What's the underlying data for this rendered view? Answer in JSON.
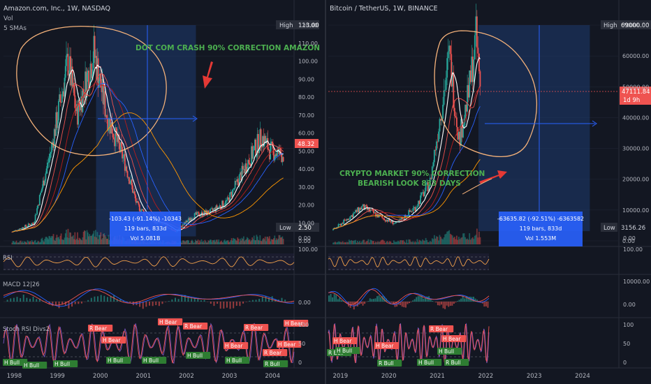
{
  "colors": {
    "background": "#131722",
    "grid": "#1f2433",
    "axis_text": "#b2b5be",
    "up": "#26a69a",
    "down": "#ef5350",
    "range_box": "#1e3a70",
    "blue": "#2962ff",
    "annot_green": "#4caf50",
    "arrow_red": "#e53935",
    "hand_circle": "#f5b27a"
  },
  "left_panel": {
    "symbol": "Amazon.com, Inc., 1W, NASDAQ",
    "vol_label": "Vol",
    "sma_label": "5 SMAs",
    "annotation": "DOT COM CRASH 90% CORRECTION AMAZON",
    "high_tag": "High",
    "high_value": "113.00",
    "low_tag": "Low",
    "low_value": "2.50",
    "last_price": "48.32",
    "range_line1": "-103.43 (-91.14%) -10343",
    "range_line2": "119 bars, 833d",
    "range_line3": "Vol 5.081B",
    "price_axis": [
      "120.00",
      "110.00",
      "100.00",
      "90.00",
      "80.00",
      "70.00",
      "60.00",
      "50.00",
      "40.00",
      "30.00",
      "20.00",
      "10.00",
      "0.00"
    ],
    "time_axis": [
      "1998",
      "1999",
      "2000",
      "2001",
      "2002",
      "2003",
      "2004"
    ]
  },
  "right_panel": {
    "symbol": "Bitcoin / TetherUS, 1W, BINANCE",
    "annotation_line1": "CRYPTO MARKET 90% CORRECTION",
    "annotation_line2": "BEARISH LOOK 833 DAYS",
    "high_tag": "High",
    "high_value": "69000.00",
    "low_tag": "Low",
    "low_value": "3156.26",
    "last_price": "47111.84",
    "last_price_time": "1d 9h",
    "range_line1": "-63635.82 (-92.51%) -6363582",
    "range_line2": "119 bars, 833d",
    "range_line3": "Vol 1.553M",
    "price_axis": [
      "70000.00",
      "60000.00",
      "50000.00",
      "40000.00",
      "30000.00",
      "20000.00",
      "10000.00",
      "0.00"
    ],
    "time_axis": [
      "2019",
      "2020",
      "2021",
      "2022",
      "2023",
      "2024"
    ]
  },
  "rsi_panel": {
    "label": "RSI",
    "axis_top": "100.00",
    "axis_bottom": "0.00"
  },
  "macd_panel": {
    "label": "MACD 12|26",
    "left_axis_top": "",
    "left_axis_zero": "0.00",
    "right_axis_top": "10000.00",
    "right_axis_zero": "0.00"
  },
  "stoch_panel": {
    "label": "Stoch RSI Divs2",
    "axis": [
      "100",
      "50",
      "0"
    ],
    "bear_tag": "R Bear",
    "hbear_tag": "H Bear",
    "bull_tag": "R Bull",
    "hbull_tag": "H Bull"
  },
  "chart_data": [
    {
      "type": "candlestick",
      "title": "Amazon.com, Inc., 1W, NASDAQ",
      "ylim": [
        0,
        120
      ],
      "x_range": [
        "1998",
        "2004"
      ],
      "high": 113.0,
      "low": 2.5,
      "last": 48.32,
      "measured_change": -103.43,
      "measured_change_pct": -91.14,
      "bars": 119,
      "days": 833,
      "volume": "5.081B",
      "approx_path": [
        [
          1998.0,
          5
        ],
        [
          1998.5,
          10
        ],
        [
          1998.9,
          50
        ],
        [
          1999.3,
          100
        ],
        [
          1999.5,
          70
        ],
        [
          1999.9,
          105
        ],
        [
          2000.2,
          70
        ],
        [
          2000.6,
          45
        ],
        [
          2000.9,
          20
        ],
        [
          2001.2,
          12
        ],
        [
          2001.6,
          8
        ],
        [
          2001.8,
          5
        ],
        [
          2002.2,
          14
        ],
        [
          2002.6,
          16
        ],
        [
          2003.0,
          22
        ],
        [
          2003.5,
          45
        ],
        [
          2003.8,
          58
        ],
        [
          2004.0,
          50
        ],
        [
          2004.3,
          48
        ]
      ]
    },
    {
      "type": "candlestick",
      "title": "Bitcoin / TetherUS, 1W, BINANCE",
      "ylim": [
        0,
        70000
      ],
      "x_range": [
        "2019",
        "2024"
      ],
      "high": 69000.0,
      "low": 3156.26,
      "last": 47111.84,
      "measured_change": -63635.82,
      "measured_change_pct": -92.51,
      "bars": 119,
      "days": 833,
      "volume": "1.553M",
      "approx_path": [
        [
          2018.9,
          3500
        ],
        [
          2019.5,
          11000
        ],
        [
          2019.9,
          7500
        ],
        [
          2020.2,
          5500
        ],
        [
          2020.6,
          11000
        ],
        [
          2020.9,
          19000
        ],
        [
          2021.1,
          40000
        ],
        [
          2021.3,
          60000
        ],
        [
          2021.5,
          33000
        ],
        [
          2021.7,
          48000
        ],
        [
          2021.85,
          66000
        ],
        [
          2021.95,
          47000
        ]
      ]
    }
  ]
}
